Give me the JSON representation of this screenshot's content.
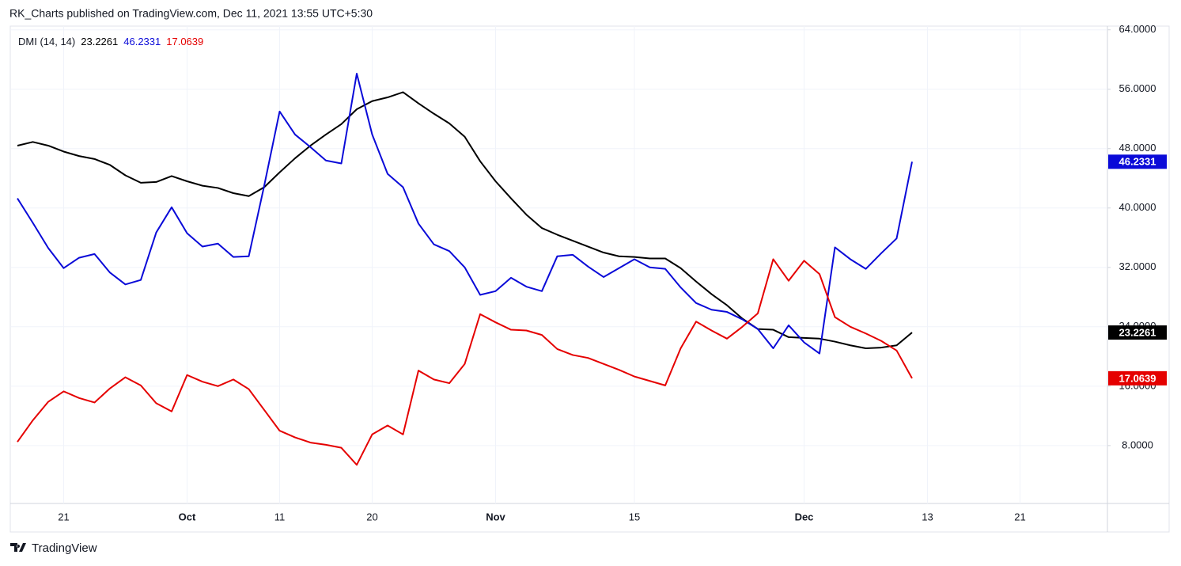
{
  "header": "RK_Charts published on TradingView.com, Dec 11, 2021 13:55 UTC+5:30",
  "brand": "TradingView",
  "chart_data": {
    "type": "line",
    "title": "DMI (14, 14)",
    "categories": [
      null,
      null,
      null,
      "21",
      null,
      null,
      null,
      null,
      null,
      null,
      null,
      "Oct",
      null,
      null,
      null,
      null,
      null,
      "11",
      null,
      null,
      null,
      null,
      null,
      "20",
      null,
      null,
      null,
      null,
      null,
      null,
      null,
      "Nov",
      null,
      null,
      null,
      null,
      null,
      null,
      null,
      null,
      "15",
      null,
      null,
      null,
      null,
      null,
      null,
      null,
      null,
      null,
      null,
      "Dec",
      null,
      null,
      null,
      null,
      null,
      null,
      null,
      "13",
      null,
      null,
      null,
      null,
      null,
      "21",
      null,
      null,
      null,
      null,
      null
    ],
    "series": [
      {
        "color": "#000000",
        "values": [
          48.4,
          48.9,
          48.4,
          47.6,
          47,
          46.6,
          45.8,
          44.4,
          43.4,
          43.5,
          44.3,
          43.6,
          43,
          42.7,
          42,
          41.6,
          42.8,
          44.8,
          46.7,
          48.4,
          49.9,
          51.3,
          53.3,
          54.4,
          54.9,
          55.6,
          54.1,
          52.7,
          51.4,
          49.6,
          46.3,
          43.6,
          41.3,
          39.1,
          37.3,
          36.4,
          35.6,
          34.8,
          34,
          33.5,
          33.4,
          33.2,
          33.2,
          31.9,
          30.1,
          28.4,
          26.9,
          25.1,
          23.7,
          23.6,
          22.6,
          22.5,
          22.4,
          22,
          21.5,
          21.1,
          21.2,
          21.5,
          23.2261,
          null,
          null,
          null,
          null,
          null,
          null,
          null,
          null,
          null,
          null,
          null,
          null
        ]
      },
      {
        "color": "#0a0ad8",
        "values": [
          41.3,
          38,
          34.6,
          31.9,
          33.3,
          33.8,
          31.3,
          29.7,
          30.3,
          36.7,
          40.1,
          36.6,
          34.8,
          35.2,
          33.4,
          33.5,
          43,
          53,
          49.9,
          48.2,
          46.4,
          46,
          58.1,
          49.9,
          44.6,
          42.8,
          37.9,
          35.1,
          34.2,
          32,
          28.3,
          28.8,
          30.6,
          29.4,
          28.8,
          33.5,
          33.7,
          32.1,
          30.7,
          31.9,
          33.1,
          32,
          31.8,
          29.3,
          27.2,
          26.3,
          26,
          25,
          23.7,
          21.1,
          24.2,
          21.9,
          20.4,
          34.7,
          33.1,
          31.8,
          33.9,
          35.9,
          46.2331,
          null,
          null,
          null,
          null,
          null,
          null,
          null,
          null,
          null,
          null,
          null,
          null
        ]
      },
      {
        "color": "#e50000",
        "values": [
          8.5,
          11.4,
          13.9,
          15.3,
          14.4,
          13.8,
          15.7,
          17.2,
          16.1,
          13.7,
          12.6,
          17.5,
          16.6,
          16,
          16.9,
          15.6,
          12.8,
          10,
          9.1,
          8.4,
          8.1,
          7.7,
          5.4,
          9.5,
          10.7,
          9.5,
          18.1,
          16.9,
          16.4,
          19,
          25.7,
          24.6,
          23.6,
          23.5,
          22.9,
          21,
          20.2,
          19.8,
          19,
          18.2,
          17.3,
          16.7,
          16.1,
          21.1,
          24.7,
          23.5,
          22.4,
          24,
          25.8,
          33.1,
          30.2,
          32.9,
          31.1,
          25.3,
          24,
          23.1,
          22.1,
          20.8,
          17.0639,
          null,
          null,
          null,
          null,
          null,
          null,
          null,
          null,
          null,
          null,
          null,
          null
        ]
      }
    ],
    "ylim": [
      0.2,
      64.5
    ],
    "yticks": [
      {
        "value": 8,
        "label": "8.0000"
      },
      {
        "value": 16,
        "label": "16.0000"
      },
      {
        "value": 24,
        "label": "24.0000"
      },
      {
        "value": 32,
        "label": "32.0000"
      },
      {
        "value": 40,
        "label": "40.0000"
      },
      {
        "value": 48,
        "label": "48.0000"
      },
      {
        "value": 56,
        "label": "56.0000"
      },
      {
        "value": 64,
        "label": "64.0000"
      }
    ],
    "grid": true
  }
}
